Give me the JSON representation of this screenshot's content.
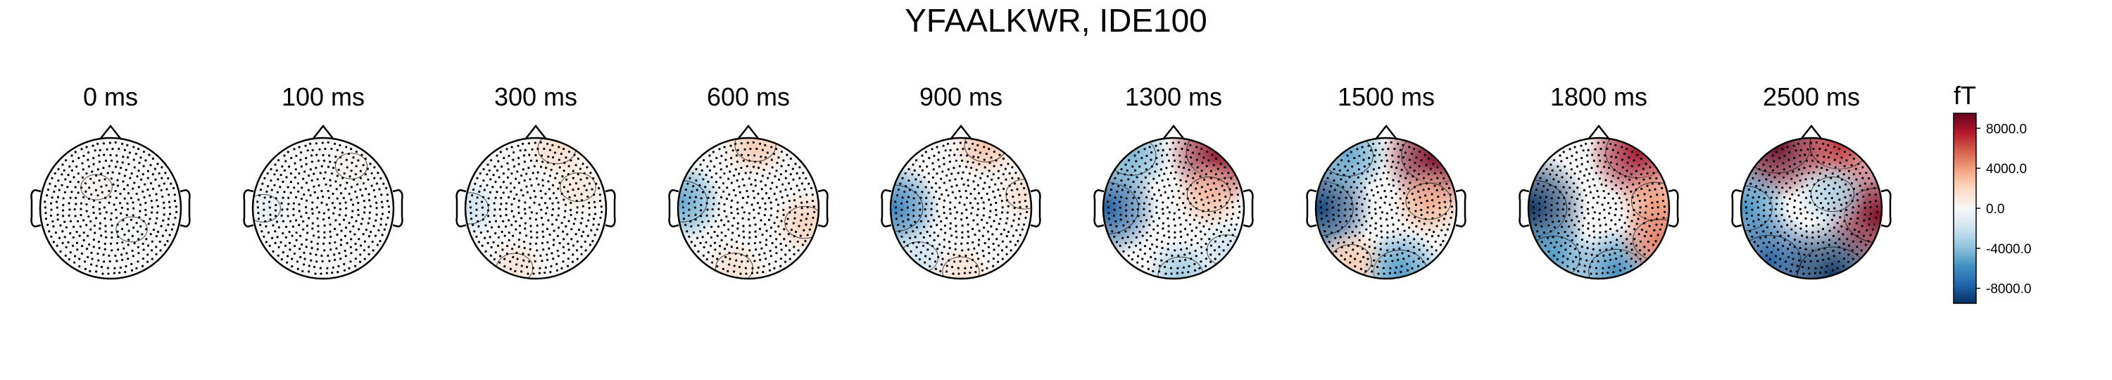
{
  "page": {
    "title": "YFAALKWR, IDE100"
  },
  "colorbar": {
    "unit": "fT",
    "colors": [
      "#053061",
      "#2166ac",
      "#4393c3",
      "#92c5de",
      "#d1e5f0",
      "#f7f7f7",
      "#fddbc7",
      "#f4a582",
      "#d6604d",
      "#b2182b",
      "#67001f"
    ]
  },
  "chart_data": {
    "type": "heatmap",
    "title": "YFAALKWR, IDE100",
    "subtype": "topographic-map-series",
    "unit": "fT",
    "color_range": [
      -9500,
      9500
    ],
    "colorbar_ticks": [
      {
        "value": 8000,
        "label": "8000.0"
      },
      {
        "value": 4000,
        "label": "4000.0"
      },
      {
        "value": 0,
        "label": "0.0"
      },
      {
        "value": -4000,
        "label": "-4000.0"
      },
      {
        "value": -8000,
        "label": "-8000.0"
      }
    ],
    "maps": [
      {
        "label": "0 ms",
        "blobs": [
          {
            "x": -0.2,
            "y": 0.3,
            "value": 200
          },
          {
            "x": 0.3,
            "y": -0.3,
            "value": -150
          }
        ]
      },
      {
        "label": "100 ms",
        "blobs": [
          {
            "x": -0.85,
            "y": 0.0,
            "value": -900
          },
          {
            "x": 0.4,
            "y": 0.6,
            "value": 300
          }
        ]
      },
      {
        "label": "300 ms",
        "blobs": [
          {
            "x": -0.95,
            "y": 0.0,
            "value": -2000
          },
          {
            "x": 0.3,
            "y": 0.85,
            "value": 1800
          },
          {
            "x": 0.6,
            "y": 0.3,
            "value": 1200
          },
          {
            "x": -0.3,
            "y": -0.85,
            "value": 1400
          }
        ]
      },
      {
        "label": "600 ms",
        "blobs": [
          {
            "x": -0.95,
            "y": 0.1,
            "value": -5000
          },
          {
            "x": 0.1,
            "y": 0.9,
            "value": 2500
          },
          {
            "x": 0.8,
            "y": -0.2,
            "value": 2200
          },
          {
            "x": -0.2,
            "y": -0.85,
            "value": 1600
          }
        ]
      },
      {
        "label": "900 ms",
        "blobs": [
          {
            "x": -0.95,
            "y": 0.0,
            "value": -6500
          },
          {
            "x": -0.6,
            "y": -0.7,
            "value": -2000
          },
          {
            "x": 0.35,
            "y": 0.9,
            "value": 2800
          },
          {
            "x": 0.9,
            "y": 0.2,
            "value": 1500
          },
          {
            "x": 0.0,
            "y": -0.9,
            "value": 1500
          }
        ]
      },
      {
        "label": "1300 ms",
        "blobs": [
          {
            "x": -0.95,
            "y": 0.0,
            "value": -8000
          },
          {
            "x": -0.6,
            "y": 0.75,
            "value": -4500
          },
          {
            "x": 0.65,
            "y": 0.8,
            "value": 8500
          },
          {
            "x": 0.5,
            "y": 0.2,
            "value": 3000
          },
          {
            "x": 0.1,
            "y": -0.95,
            "value": -3500
          },
          {
            "x": 0.75,
            "y": -0.6,
            "value": -2000
          }
        ]
      },
      {
        "label": "1500 ms",
        "blobs": [
          {
            "x": -0.95,
            "y": 0.0,
            "value": -9000
          },
          {
            "x": -0.55,
            "y": 0.75,
            "value": -5000
          },
          {
            "x": 0.7,
            "y": 0.75,
            "value": 9000
          },
          {
            "x": 0.6,
            "y": 0.1,
            "value": 3500
          },
          {
            "x": 0.2,
            "y": -0.9,
            "value": -5500
          },
          {
            "x": -0.5,
            "y": -0.75,
            "value": 2500
          }
        ]
      },
      {
        "label": "1800 ms",
        "blobs": [
          {
            "x": -0.95,
            "y": 0.0,
            "value": -9500
          },
          {
            "x": -0.65,
            "y": -0.7,
            "value": -5500
          },
          {
            "x": 0.55,
            "y": 0.8,
            "value": 8000
          },
          {
            "x": 0.8,
            "y": 0.1,
            "value": 4000
          },
          {
            "x": 0.25,
            "y": -0.9,
            "value": -6000
          },
          {
            "x": 0.85,
            "y": -0.45,
            "value": 5000
          }
        ]
      },
      {
        "label": "2500 ms",
        "blobs": [
          {
            "x": -0.5,
            "y": 0.9,
            "value": 9500
          },
          {
            "x": 0.4,
            "y": 0.9,
            "value": 7000
          },
          {
            "x": -0.95,
            "y": 0.0,
            "value": -6000
          },
          {
            "x": -0.6,
            "y": -0.75,
            "value": -8000
          },
          {
            "x": 0.3,
            "y": -0.95,
            "value": -9500
          },
          {
            "x": 0.95,
            "y": -0.1,
            "value": 9000
          },
          {
            "x": 0.3,
            "y": 0.2,
            "value": -3000
          }
        ]
      }
    ]
  }
}
